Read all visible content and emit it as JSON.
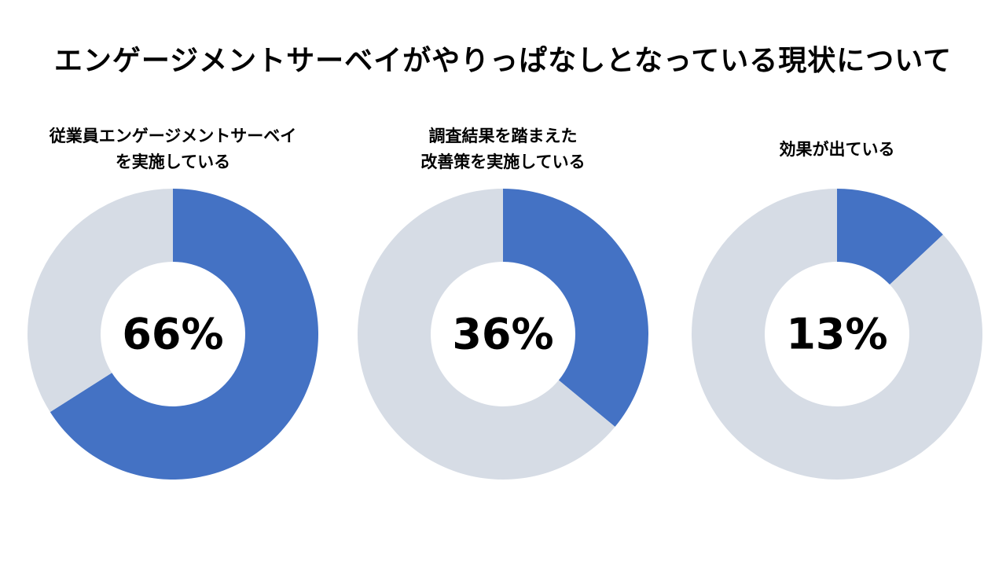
{
  "title": "エンゲージメントサーベイがやりっぱなしとなっている現状について",
  "colors": {
    "filled": "#4472C4",
    "remainder": "#D6DCE5",
    "hole": "#FFFFFF"
  },
  "chart_data": [
    {
      "type": "pie",
      "title_lines": [
        "従業員エンゲージメントサーベイ",
        "を実施している"
      ],
      "value": 66,
      "value_label": "66%",
      "unit": "%"
    },
    {
      "type": "pie",
      "title_lines": [
        "調査結果を踏まえた",
        "改善策を実施している"
      ],
      "value": 36,
      "value_label": "36%",
      "unit": "%"
    },
    {
      "type": "pie",
      "title_lines": [
        "効果が出ている"
      ],
      "value": 13,
      "value_label": "13%",
      "unit": "%"
    }
  ]
}
